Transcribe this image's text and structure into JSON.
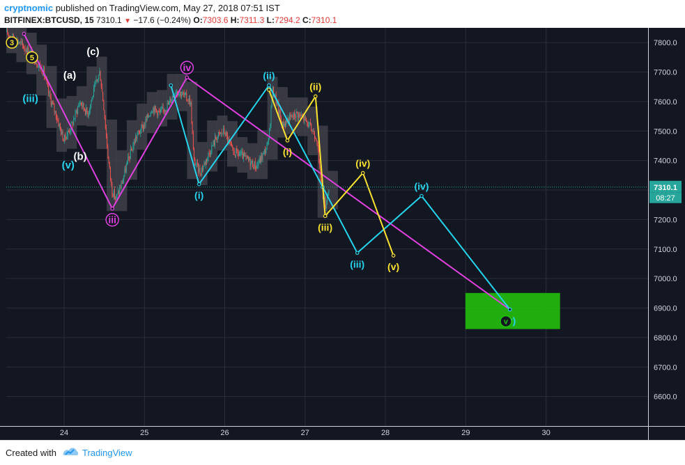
{
  "header": {
    "author": "cryptnomic",
    "published": "published on TradingView.com, May 27, 2018 07:51 IST",
    "symbol": "BITFINEX:BTCUSD, 15",
    "last": "7310.1",
    "change": "−17.6 (−0.24%)",
    "o_label": "O:",
    "o_value": "7303.6",
    "h_label": "H:",
    "h_value": "7311.3",
    "l_label": "L:",
    "l_value": "7294.2",
    "c_label": "C:",
    "c_value": "7310.1"
  },
  "footer": {
    "created_with": "Created with",
    "brand": "TradingView"
  },
  "colors": {
    "magenta": "#e040e0",
    "cyan": "#26d4ee",
    "yellow": "#fbe231",
    "target_zone": "#22c30a",
    "candle_up": "#26a69a",
    "candle_down": "#ef5350",
    "envelope": "#46464e",
    "background": "#131722",
    "text": "#d1d4dc"
  },
  "chart_data": {
    "type": "candlestick",
    "symbol": "BITFINEX:BTCUSD",
    "interval": "15",
    "x_axis": {
      "range": [
        23.28,
        31.27
      ],
      "ticks": [
        24,
        25,
        26,
        27,
        28,
        29,
        30
      ],
      "tick_labels": [
        "24",
        "25",
        "26",
        "27",
        "28",
        "29",
        "30"
      ]
    },
    "y_axis": {
      "range": [
        6500,
        7850
      ],
      "ticks": [
        6600,
        6700,
        6800,
        6900,
        7000,
        7100,
        7200,
        7300,
        7400,
        7500,
        7600,
        7700,
        7800
      ],
      "tick_labels": [
        "6600.0",
        "6700.0",
        "6800.0",
        "6900.0",
        "7000.0",
        "7100.0",
        "7200.0",
        "7300.0",
        "7400.0",
        "7500.0",
        "7600.0",
        "7700.0",
        "7800.0"
      ],
      "position": "right"
    },
    "grid": true,
    "last_price": {
      "value": 7310.1,
      "label": "7310.1",
      "countdown": "08:27"
    },
    "price_path": [
      [
        23.28,
        7835
      ],
      [
        23.45,
        7800
      ],
      [
        23.6,
        7760
      ],
      [
        23.75,
        7700
      ],
      [
        23.82,
        7620
      ],
      [
        23.9,
        7560
      ],
      [
        24.0,
        7470
      ],
      [
        24.1,
        7520
      ],
      [
        24.2,
        7600
      ],
      [
        24.3,
        7560
      ],
      [
        24.4,
        7660
      ],
      [
        24.45,
        7700
      ],
      [
        24.5,
        7580
      ],
      [
        24.55,
        7420
      ],
      [
        24.6,
        7300
      ],
      [
        24.65,
        7270
      ],
      [
        24.72,
        7320
      ],
      [
        24.8,
        7400
      ],
      [
        24.9,
        7480
      ],
      [
        25.0,
        7520
      ],
      [
        25.1,
        7580
      ],
      [
        25.2,
        7560
      ],
      [
        25.3,
        7590
      ],
      [
        25.4,
        7640
      ],
      [
        25.5,
        7620
      ],
      [
        25.58,
        7600
      ],
      [
        25.62,
        7400
      ],
      [
        25.7,
        7360
      ],
      [
        25.8,
        7420
      ],
      [
        25.9,
        7480
      ],
      [
        26.0,
        7500
      ],
      [
        26.1,
        7430
      ],
      [
        26.2,
        7420
      ],
      [
        26.3,
        7400
      ],
      [
        26.4,
        7380
      ],
      [
        26.5,
        7430
      ],
      [
        26.55,
        7460
      ],
      [
        26.6,
        7640
      ],
      [
        26.65,
        7600
      ],
      [
        26.72,
        7520
      ],
      [
        26.8,
        7540
      ],
      [
        26.9,
        7560
      ],
      [
        27.0,
        7540
      ],
      [
        27.1,
        7500
      ],
      [
        27.15,
        7480
      ],
      [
        27.18,
        7380
      ],
      [
        27.22,
        7300
      ],
      [
        27.26,
        7250
      ],
      [
        27.3,
        7310
      ]
    ],
    "wave_paths": [
      {
        "name": "primary",
        "color_key": "magenta",
        "points": [
          [
            23.5,
            7830
          ],
          [
            24.6,
            7237
          ],
          [
            25.53,
            7682
          ],
          [
            29.55,
            6895
          ]
        ],
        "labels": [
          {
            "text": "iii",
            "x": 24.6,
            "y": 7237,
            "pos": "below"
          },
          {
            "text": "iv",
            "x": 25.53,
            "y": 7682,
            "pos": "above"
          }
        ]
      },
      {
        "name": "intermediate",
        "color_key": "cyan",
        "points": [
          [
            25.33,
            7655
          ],
          [
            25.68,
            7320
          ],
          [
            26.55,
            7655
          ],
          [
            27.22,
            7310
          ],
          [
            27.65,
            7087
          ],
          [
            28.45,
            7280
          ],
          [
            29.55,
            6895
          ]
        ],
        "labels": [
          {
            "text": "(i)",
            "x": 25.68,
            "y": 7320,
            "pos": "below"
          },
          {
            "text": "(ii)",
            "x": 26.55,
            "y": 7655,
            "pos": "above"
          },
          {
            "text": "(iii)",
            "x": 27.65,
            "y": 7087,
            "pos": "below"
          },
          {
            "text": "(iv)",
            "x": 28.45,
            "y": 7280,
            "pos": "above"
          },
          {
            "text": "(v)",
            "x": 29.55,
            "y": 6895,
            "pos": "below"
          }
        ]
      },
      {
        "name": "minor",
        "color_key": "yellow",
        "points": [
          [
            26.55,
            7640
          ],
          [
            26.78,
            7468
          ],
          [
            27.13,
            7618
          ],
          [
            27.25,
            7212
          ],
          [
            27.72,
            7358
          ],
          [
            28.1,
            7078
          ]
        ],
        "labels": [
          {
            "text": "(i)",
            "x": 26.78,
            "y": 7468,
            "pos": "below"
          },
          {
            "text": "(ii)",
            "x": 27.13,
            "y": 7618,
            "pos": "above"
          },
          {
            "text": "(iii)",
            "x": 27.25,
            "y": 7212,
            "pos": "below"
          },
          {
            "text": "(iv)",
            "x": 27.72,
            "y": 7358,
            "pos": "above"
          },
          {
            "text": "(v)",
            "x": 28.1,
            "y": 7078,
            "pos": "below"
          }
        ]
      }
    ],
    "annotations": [
      {
        "text": "3",
        "x": 23.35,
        "y": 7800,
        "style": "circled",
        "color_key": "yellow"
      },
      {
        "text": "5",
        "x": 23.6,
        "y": 7750,
        "style": "circled",
        "color_key": "yellow"
      },
      {
        "text": "(iii)",
        "x": 23.58,
        "y": 7610,
        "style": "plain",
        "color_key": "cyan"
      },
      {
        "text": "(a)",
        "x": 24.07,
        "y": 7690,
        "style": "plain",
        "color": "#ffffff"
      },
      {
        "text": "(c)",
        "x": 24.36,
        "y": 7770,
        "style": "plain",
        "color": "#ffffff"
      },
      {
        "text": "(b)",
        "x": 24.2,
        "y": 7415,
        "style": "plain",
        "color": "#ffffff"
      },
      {
        "text": "(v)",
        "x": 24.05,
        "y": 7385,
        "style": "plain",
        "color_key": "cyan"
      },
      {
        "text": "v",
        "x": 29.5,
        "y": 6855,
        "style": "circled",
        "color_key": "target_zone"
      }
    ],
    "target_zone": {
      "x_range": [
        29.0,
        30.17
      ],
      "y_range": [
        6830,
        6950
      ]
    }
  }
}
